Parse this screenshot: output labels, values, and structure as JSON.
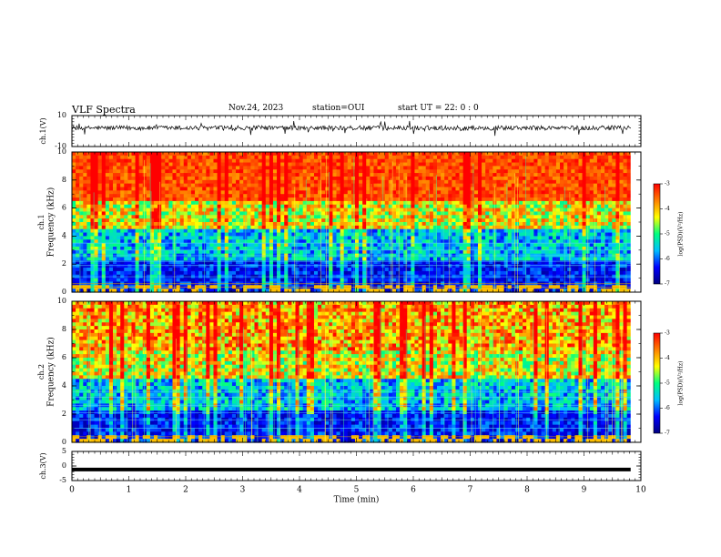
{
  "header": {
    "title": "VLF Spectra",
    "date": "Nov.24, 2023",
    "station": "station=OUI",
    "start": "start  UT =   22: 0  : 0"
  },
  "chart_data": [
    {
      "type": "line",
      "ylabel": "ch.1(V)",
      "ylim": [
        -10,
        10
      ],
      "yticks": [
        "10",
        "-10"
      ],
      "description_level": "noisy waveform around +2 V with amplitude about +/-3 V"
    },
    {
      "type": "heatmap",
      "ylabel": "ch.1 Frequency (kHz)",
      "ylim": [
        0,
        10
      ],
      "yticks": [
        "0",
        "2",
        "4",
        "6",
        "8",
        "10"
      ],
      "colorbar": {
        "label": "log(PSD)(V²/Hz)",
        "range": [
          -7,
          -3
        ],
        "ticks": [
          "-3",
          "-4",
          "-5",
          "-6",
          "-7"
        ]
      }
    },
    {
      "type": "heatmap",
      "ylabel": "ch.2 Frequency (kHz)",
      "ylim": [
        0,
        10
      ],
      "yticks": [
        "0",
        "2",
        "4",
        "6",
        "8",
        "10"
      ],
      "colorbar": {
        "label": "log(PSD)(V²/Hz)",
        "range": [
          -7,
          -3
        ],
        "ticks": [
          "-3",
          "-4",
          "-5",
          "-6",
          "-7"
        ]
      }
    },
    {
      "type": "line",
      "ylabel": "ch.3(V)",
      "ylim": [
        -5,
        5
      ],
      "yticks": [
        "5",
        "0",
        "-5"
      ],
      "constant_value": -1.2
    }
  ],
  "xaxis": {
    "label": "Time  (min)",
    "xlim": [
      0,
      10
    ],
    "ticks": [
      "0",
      "1",
      "2",
      "3",
      "4",
      "5",
      "6",
      "7",
      "8",
      "9",
      "10"
    ],
    "data_end": 9.82
  },
  "colors": {
    "scale": [
      "#00007f",
      "#0000ff",
      "#00bfff",
      "#00ff80",
      "#ffff00",
      "#ff8000",
      "#ff0000"
    ]
  }
}
